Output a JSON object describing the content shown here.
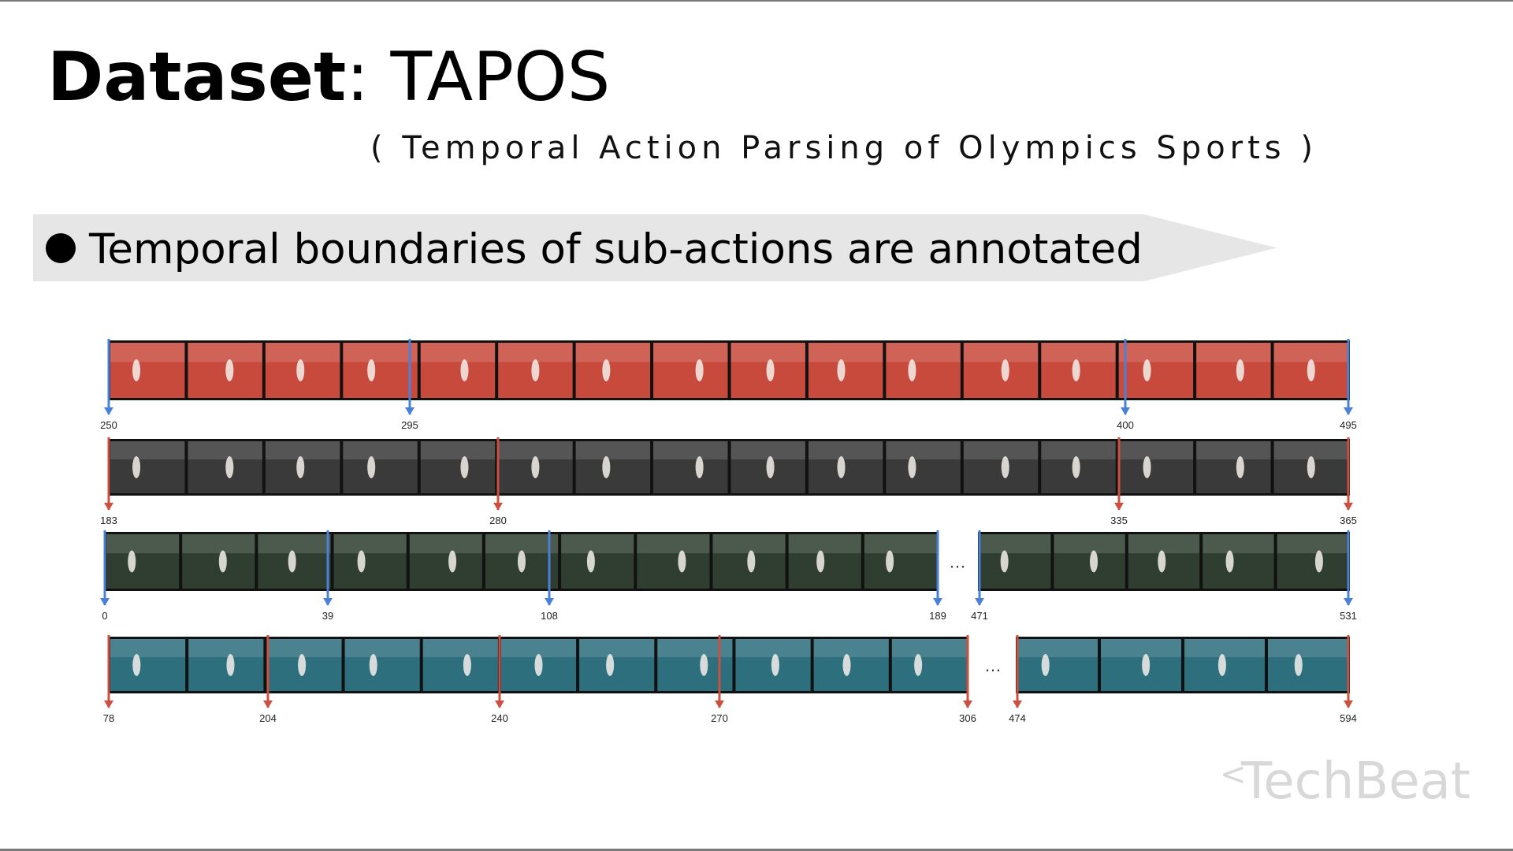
{
  "slide": {
    "title_bold": "Dataset",
    "title_rest": ": TAPOS",
    "subtitle": "( Temporal Action Parsing of Olympics Sports )",
    "bullet": "Temporal boundaries of sub-actions are annotated",
    "watermark": "TechBeat"
  },
  "colors": {
    "blue_marker": "#4a80d8",
    "red_marker": "#cc5040",
    "track": "#c84a3c",
    "highjump": "#3a3a3a",
    "rings": "#2f3e30",
    "vault": "#2d6f7d"
  },
  "strips": [
    {
      "theme": "track",
      "segments": [
        {
          "frames": 16,
          "markers": [
            {
              "label": "250",
              "color": "blue"
            },
            {
              "label": "295",
              "color": "blue"
            },
            {
              "label": "400",
              "color": "blue"
            },
            {
              "label": "495",
              "color": "blue"
            }
          ]
        }
      ]
    },
    {
      "theme": "highjump",
      "segments": [
        {
          "frames": 16,
          "markers": [
            {
              "label": "183",
              "color": "red"
            },
            {
              "label": "280",
              "color": "red"
            },
            {
              "label": "335",
              "color": "red"
            },
            {
              "label": "365",
              "color": "red"
            }
          ]
        }
      ]
    },
    {
      "theme": "rings",
      "ellipsis": "…",
      "segments": [
        {
          "frames": 11,
          "markers": [
            {
              "label": "0",
              "color": "blue"
            },
            {
              "label": "39",
              "color": "blue"
            },
            {
              "label": "108",
              "color": "blue"
            },
            {
              "label": "189",
              "color": "blue"
            }
          ]
        },
        {
          "frames": 5,
          "markers": [
            {
              "label": "471",
              "color": "blue"
            },
            {
              "label": "531",
              "color": "blue"
            }
          ]
        }
      ]
    },
    {
      "theme": "vault",
      "ellipsis": "…",
      "segments": [
        {
          "frames": 11,
          "markers": [
            {
              "label": "78",
              "color": "red"
            },
            {
              "label": "204",
              "color": "red"
            },
            {
              "label": "240",
              "color": "red"
            },
            {
              "label": "270",
              "color": "red"
            },
            {
              "label": "306",
              "color": "red"
            }
          ]
        },
        {
          "frames": 4,
          "markers": [
            {
              "label": "474",
              "color": "red"
            },
            {
              "label": "594",
              "color": "red"
            }
          ]
        }
      ]
    }
  ]
}
